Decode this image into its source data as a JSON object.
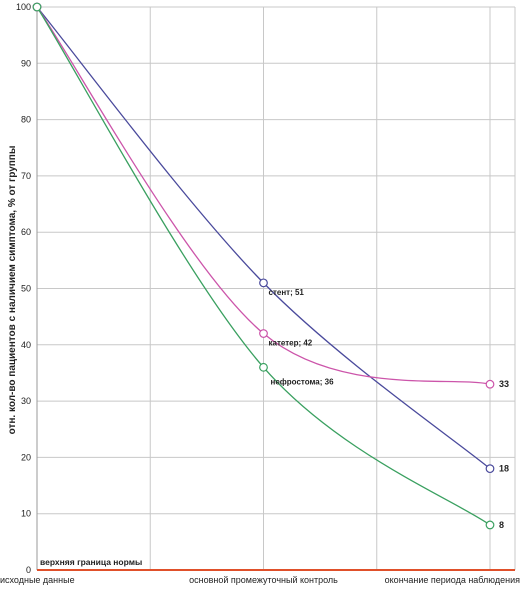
{
  "chart_data": {
    "type": "line",
    "categories": [
      "исходные данные",
      "основной промежуточный контроль",
      "окончание периода наблюдения"
    ],
    "ylabel": "отн. кол-во пациентов с наличием симптома, % от группы",
    "xlabel": "",
    "ylim": [
      0,
      100
    ],
    "yticks": [
      0,
      10,
      20,
      30,
      40,
      50,
      60,
      70,
      80,
      90,
      100
    ],
    "grid": true,
    "series": [
      {
        "name": "стент",
        "values": [
          100,
          51,
          18
        ],
        "color": "#4a4a9c",
        "mid_label": "стент; 51",
        "end_label": "18"
      },
      {
        "name": "катетер",
        "values": [
          100,
          42,
          33
        ],
        "color": "#cc55aa",
        "mid_label": "катетер; 42",
        "end_label": "33"
      },
      {
        "name": "нефростома",
        "values": [
          100,
          36,
          8
        ],
        "color": "#3aa060",
        "mid_label": "нефростома; 36",
        "end_label": "8"
      }
    ],
    "reference_line": {
      "label": "верхняя граница нормы",
      "value": 0,
      "color": "#e0502a"
    }
  }
}
